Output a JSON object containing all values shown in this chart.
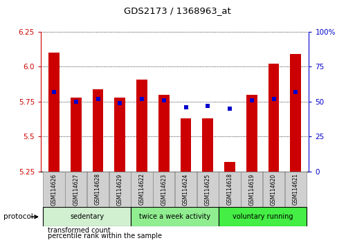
{
  "title": "GDS2173 / 1368963_at",
  "samples": [
    "GSM114626",
    "GSM114627",
    "GSM114628",
    "GSM114629",
    "GSM114622",
    "GSM114623",
    "GSM114624",
    "GSM114625",
    "GSM114618",
    "GSM114619",
    "GSM114620",
    "GSM114621"
  ],
  "transformed_count": [
    6.1,
    5.78,
    5.84,
    5.78,
    5.91,
    5.8,
    5.63,
    5.63,
    5.32,
    5.8,
    6.02,
    6.09
  ],
  "percentile_rank": [
    57,
    50,
    52,
    49,
    52,
    51,
    46,
    47,
    45,
    51,
    52,
    57
  ],
  "groups": [
    {
      "label": "sedentary",
      "indices": [
        0,
        1,
        2,
        3
      ],
      "color": "#d0f0d0"
    },
    {
      "label": "twice a week activity",
      "indices": [
        4,
        5,
        6,
        7
      ],
      "color": "#90ee90"
    },
    {
      "label": "voluntary running",
      "indices": [
        8,
        9,
        10,
        11
      ],
      "color": "#44ee44"
    }
  ],
  "ylim_left": [
    5.25,
    6.25
  ],
  "ylim_right": [
    0,
    100
  ],
  "yticks_left": [
    5.25,
    5.5,
    5.75,
    6.0,
    6.25
  ],
  "yticks_right": [
    0,
    25,
    50,
    75,
    100
  ],
  "bar_color": "#cc0000",
  "dot_color": "#0000cc",
  "bar_width": 0.5,
  "sample_box_color": "#d0d0d0",
  "protocol_label": "protocol",
  "legend_tc": "transformed count",
  "legend_pr": "percentile rank within the sample"
}
